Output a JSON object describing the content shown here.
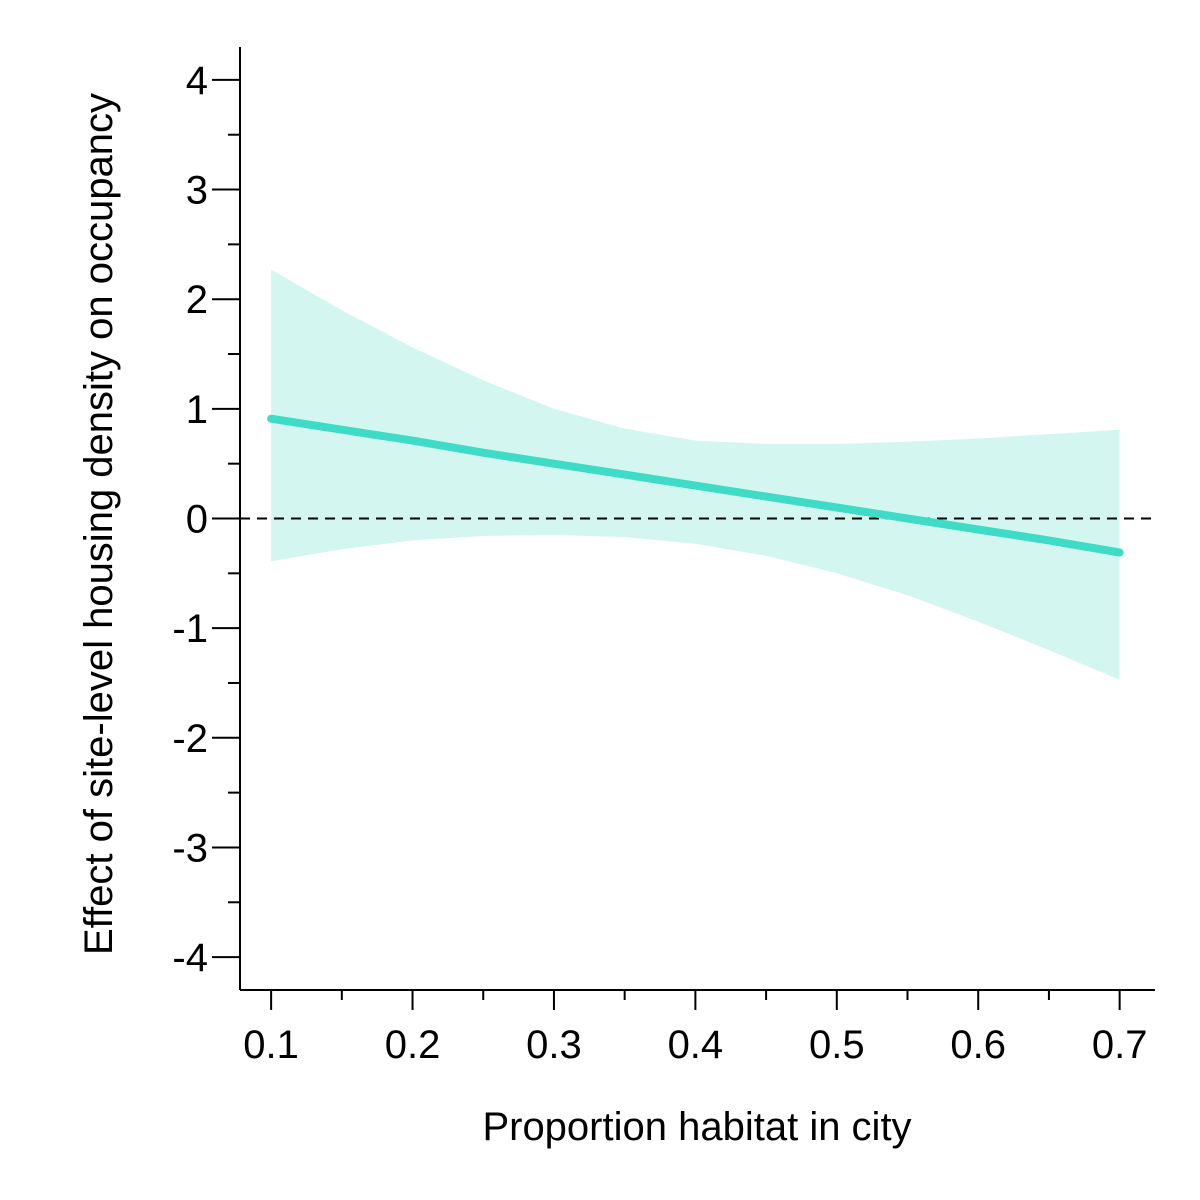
{
  "chart_data": {
    "type": "line",
    "title": "",
    "xlabel": "Proportion habitat in city",
    "ylabel": "Effect of site-level housing density on occupancy",
    "xlim": [
      0.078,
      0.725
    ],
    "ylim": [
      -4.3,
      4.3
    ],
    "x_ticks": [
      0.1,
      0.2,
      0.3,
      0.4,
      0.5,
      0.6,
      0.7
    ],
    "x_tick_labels": [
      "0.1",
      "0.2",
      "0.3",
      "0.4",
      "0.5",
      "0.6",
      "0.7"
    ],
    "x_minor_ticks": [
      0.15,
      0.25,
      0.35,
      0.45,
      0.55,
      0.65
    ],
    "y_ticks": [
      4,
      3,
      2,
      1,
      0,
      -1,
      -2,
      -3,
      -4
    ],
    "y_tick_labels": [
      "4",
      "3",
      "2",
      "1",
      "0",
      "-1",
      "-2",
      "-3",
      "-4"
    ],
    "y_minor_ticks": [
      3.5,
      2.5,
      1.5,
      0.5,
      -0.5,
      -1.5,
      -2.5,
      -3.5
    ],
    "grid": false,
    "reference_line": {
      "y": 0,
      "style": "dashed",
      "color": "#000000"
    },
    "series": [
      {
        "x": [
          0.1,
          0.15,
          0.2,
          0.25,
          0.3,
          0.35,
          0.4,
          0.45,
          0.5,
          0.55,
          0.6,
          0.65,
          0.7
        ],
        "values": [
          0.91,
          0.81,
          0.71,
          0.6,
          0.5,
          0.4,
          0.3,
          0.2,
          0.1,
          0.0,
          -0.1,
          -0.2,
          -0.31
        ],
        "lower": [
          -0.39,
          -0.28,
          -0.2,
          -0.16,
          -0.15,
          -0.17,
          -0.23,
          -0.34,
          -0.5,
          -0.7,
          -0.94,
          -1.2,
          -1.47
        ],
        "upper": [
          2.27,
          1.9,
          1.56,
          1.26,
          1.0,
          0.82,
          0.71,
          0.68,
          0.68,
          0.7,
          0.73,
          0.77,
          0.81
        ],
        "color": "#3edbc6",
        "band_color": "#d4f6f0"
      }
    ]
  }
}
